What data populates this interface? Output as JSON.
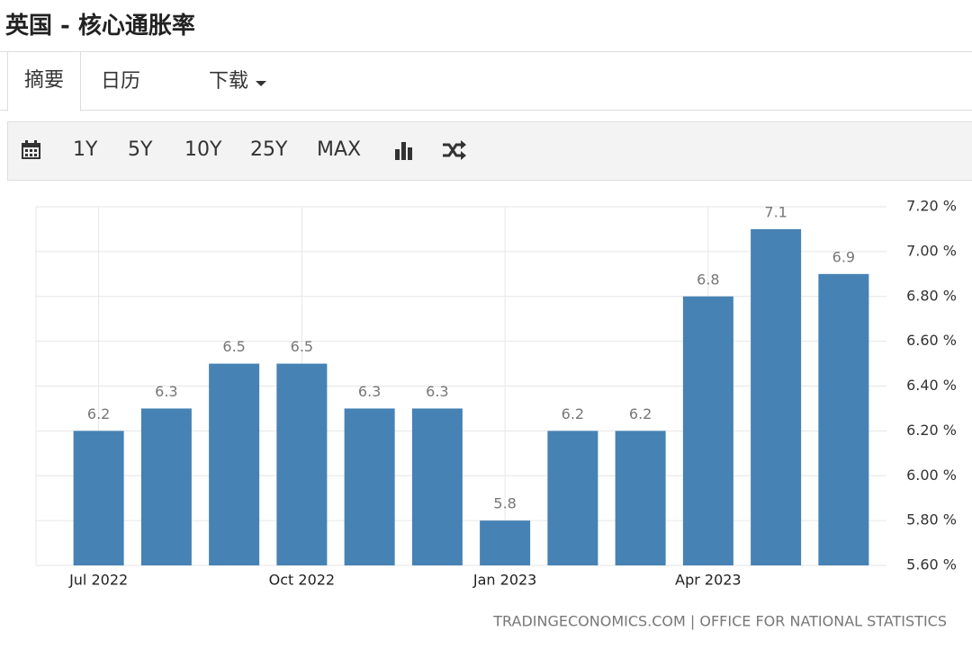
{
  "header": {
    "title": "英国 - 核心通胀率"
  },
  "tabs": [
    "摘要",
    "日历",
    "下载"
  ],
  "toolbar": {
    "ranges": [
      "1Y",
      "5Y",
      "10Y",
      "25Y",
      "MAX"
    ]
  },
  "chart_data": {
    "type": "bar",
    "categories": [
      "Jul 2022",
      null,
      null,
      "Oct 2022",
      null,
      null,
      "Jan 2023",
      null,
      null,
      "Apr 2023",
      null,
      null
    ],
    "values": [
      6.2,
      6.3,
      6.5,
      6.5,
      6.3,
      6.3,
      5.8,
      6.2,
      6.2,
      6.8,
      7.1,
      6.9
    ],
    "color": "#4682b4",
    "ylim": [
      5.6,
      7.2
    ],
    "yticks": [
      {
        "value": 5.6,
        "label": "5.60 %"
      },
      {
        "value": 5.8,
        "label": "5.80 %"
      },
      {
        "value": 6.0,
        "label": "6.00 %"
      },
      {
        "value": 6.2,
        "label": "6.20 %"
      },
      {
        "value": 6.4,
        "label": "6.40 %"
      },
      {
        "value": 6.6,
        "label": "6.60 %"
      },
      {
        "value": 6.8,
        "label": "6.80 %"
      },
      {
        "value": 7.0,
        "label": "7.00 %"
      },
      {
        "value": 7.2,
        "label": "7.20 %"
      }
    ],
    "grid": true,
    "source": "TRADINGECONOMICS.COM | OFFICE FOR NATIONAL STATISTICS"
  }
}
